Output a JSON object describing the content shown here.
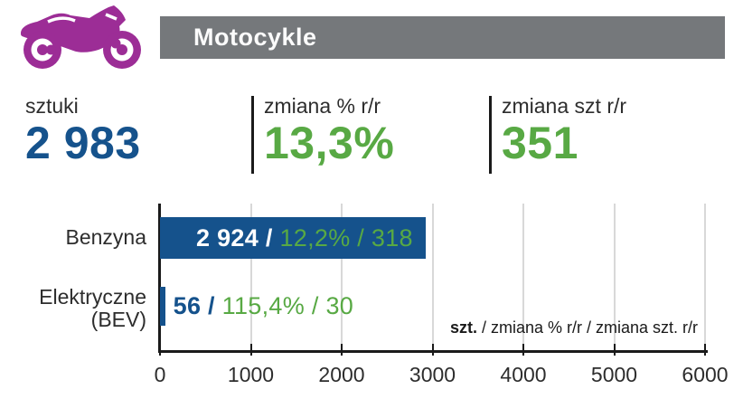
{
  "header": {
    "title": "Motocykle",
    "icon": "motorcycle"
  },
  "summary": {
    "units_label": "sztuki",
    "units_value": "2 983",
    "pct_label": "zmiana % r/r",
    "pct_value": "13,3%",
    "abs_label": "zmiana szt r/r",
    "abs_value": "351"
  },
  "chart_data": {
    "type": "bar",
    "orientation": "horizontal",
    "categories": [
      "Benzyna",
      "Elektryczne (BEV)"
    ],
    "category_lines": [
      [
        "Benzyna"
      ],
      [
        "Elektryczne",
        "(BEV)"
      ]
    ],
    "values": [
      2924,
      56
    ],
    "change_pct": [
      "12,2%",
      "115,4%"
    ],
    "change_units": [
      318,
      30
    ],
    "bar_labels": [
      {
        "value_label": "2 924 /",
        "change_label": "12,2% / 318",
        "placement": "inside"
      },
      {
        "value_label": "56 /",
        "change_label": "115,4% / 30",
        "placement": "outside"
      }
    ],
    "xlim": [
      0,
      6000
    ],
    "x_ticks": [
      "0",
      "1000",
      "2000",
      "3000",
      "4000",
      "5000",
      "6000"
    ],
    "grid": true,
    "legend": {
      "bold": "szt.",
      "rest": " / zmiana % r/r / zmiana szt. r/r"
    },
    "legend_position": "inside-bottom-right"
  },
  "colors": {
    "blue": "#15528c",
    "green": "#58a944",
    "header_gray": "#75787b",
    "purple": "#9c2d96",
    "text": "#2d2d2d",
    "gridline": "#d8d8d8",
    "axis": "#1a1a1a"
  }
}
